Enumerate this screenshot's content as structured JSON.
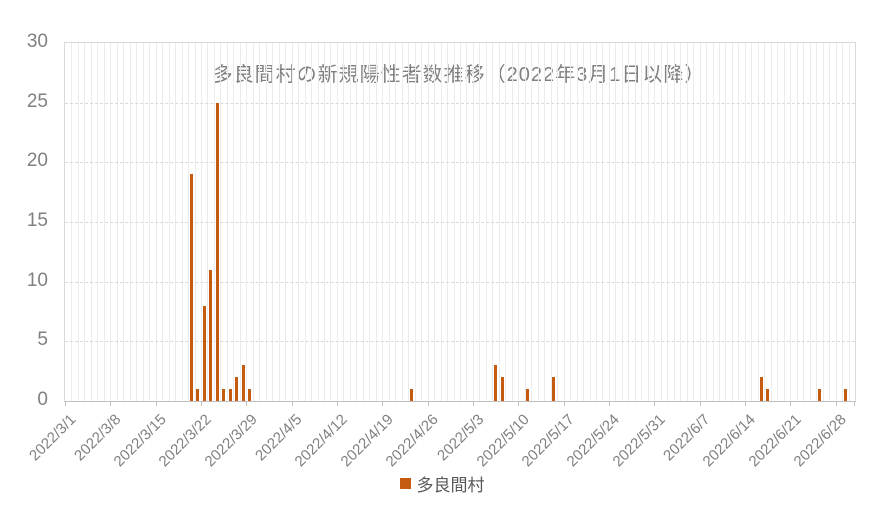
{
  "title": "多良間村の新規陽性者数推移（2022年3月1日以降）",
  "legend": {
    "label": "多良間村"
  },
  "colors": {
    "bar": "#c55a11",
    "h_gridline": "#d9d9d9",
    "v_gridline": "#ececec",
    "axis_line": "#bfbfbf",
    "text_gray": "#808080"
  },
  "chart_data": {
    "type": "bar",
    "title": "多良間村の新規陽性者数推移（2022年3月1日以降）",
    "series_name": "多良間村",
    "x_start_date": "2022/3/1",
    "x_end_date": "2022/6/30",
    "x_tick_interval_days": 7,
    "x_tick_labels": [
      "2022/3/1",
      "2022/3/8",
      "2022/3/15",
      "2022/3/22",
      "2022/3/29",
      "2022/4/5",
      "2022/4/12",
      "2022/4/19",
      "2022/4/26",
      "2022/5/3",
      "2022/5/10",
      "2022/5/17",
      "2022/5/24",
      "2022/5/31",
      "2022/6/7",
      "2022/6/14",
      "2022/6/21",
      "2022/6/28"
    ],
    "y_ticks": [
      0,
      5,
      10,
      15,
      20,
      25,
      30
    ],
    "ylim": [
      0,
      30
    ],
    "grid": true,
    "legend_position": "bottom",
    "bar_color": "#c55a11",
    "points": [
      {
        "date": "2022/3/20",
        "value": 19
      },
      {
        "date": "2022/3/21",
        "value": 1
      },
      {
        "date": "2022/3/22",
        "value": 8
      },
      {
        "date": "2022/3/23",
        "value": 11
      },
      {
        "date": "2022/3/24",
        "value": 25
      },
      {
        "date": "2022/3/25",
        "value": 1
      },
      {
        "date": "2022/3/26",
        "value": 1
      },
      {
        "date": "2022/3/27",
        "value": 2
      },
      {
        "date": "2022/3/28",
        "value": 3
      },
      {
        "date": "2022/3/29",
        "value": 1
      },
      {
        "date": "2022/4/23",
        "value": 1
      },
      {
        "date": "2022/5/6",
        "value": 3
      },
      {
        "date": "2022/5/7",
        "value": 2
      },
      {
        "date": "2022/5/11",
        "value": 1
      },
      {
        "date": "2022/5/15",
        "value": 2
      },
      {
        "date": "2022/6/16",
        "value": 2
      },
      {
        "date": "2022/6/17",
        "value": 1
      },
      {
        "date": "2022/6/25",
        "value": 1
      },
      {
        "date": "2022/6/29",
        "value": 1
      }
    ]
  }
}
